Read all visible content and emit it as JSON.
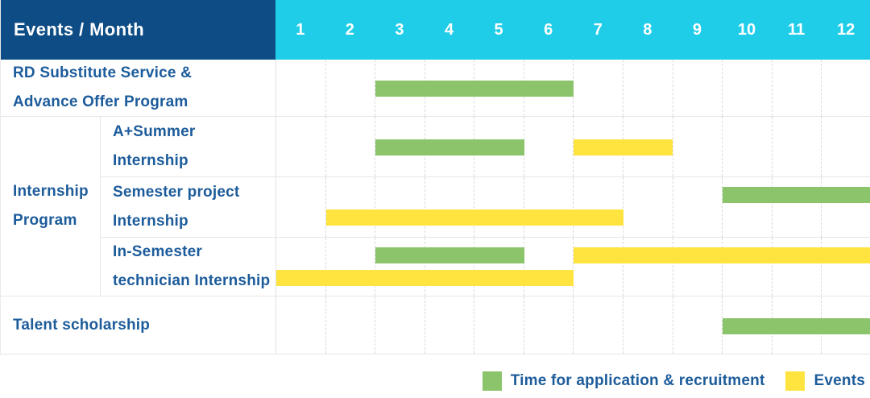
{
  "header": {
    "corner_label": "Events / Month",
    "months": [
      "1",
      "2",
      "3",
      "4",
      "5",
      "6",
      "7",
      "8",
      "9",
      "10",
      "11",
      "12"
    ]
  },
  "group_cell": {
    "label_lines": [
      "Internship",
      "Program"
    ]
  },
  "chart_data": {
    "type": "gantt",
    "x_unit": "month",
    "x_range": [
      1,
      12
    ],
    "grid": "dashed-vertical-month-lines",
    "legend_position": "bottom-right",
    "series": [
      {
        "name": "Time for application & recruitment",
        "key": "application",
        "color": "#8cc46c"
      },
      {
        "name": "Events",
        "key": "event",
        "color": "#ffe33e"
      }
    ],
    "rows": [
      {
        "group": null,
        "label": "RD Substitute Service & Advance Offer Program",
        "label_lines": [
          "RD Substitute Service &",
          "Advance Offer Program"
        ],
        "bars": [
          {
            "type": "application",
            "start_month": 3,
            "end_month": 6,
            "lane": "single"
          }
        ]
      },
      {
        "group": "Internship Program",
        "label": "A+Summer Internship",
        "label_lines": [
          "A+Summer",
          "Internship"
        ],
        "bars": [
          {
            "type": "application",
            "start_month": 3,
            "end_month": 5,
            "lane": "single"
          },
          {
            "type": "event",
            "start_month": 7,
            "end_month": 8,
            "lane": "single"
          }
        ]
      },
      {
        "group": "Internship Program",
        "label": "Semester project Internship",
        "label_lines": [
          "Semester project",
          "Internship"
        ],
        "bars": [
          {
            "type": "application",
            "start_month": 10,
            "end_month": 12,
            "lane": "top"
          },
          {
            "type": "event",
            "start_month": 2,
            "end_month": 7,
            "lane": "bottom"
          }
        ]
      },
      {
        "group": "Internship Program",
        "label": "In-Semester technician Internship",
        "label_lines": [
          "In-Semester",
          "technician Internship"
        ],
        "bars": [
          {
            "type": "application",
            "start_month": 3,
            "end_month": 5,
            "lane": "top"
          },
          {
            "type": "event",
            "start_month": 7,
            "end_month": 12,
            "lane": "top"
          },
          {
            "type": "event",
            "start_month": 1,
            "end_month": 6,
            "lane": "bottom"
          }
        ]
      },
      {
        "group": null,
        "label": "Talent scholarship",
        "label_lines": [
          "Talent scholarship"
        ],
        "bars": [
          {
            "type": "application",
            "start_month": 10,
            "end_month": 12,
            "lane": "single"
          }
        ]
      }
    ]
  },
  "legend": {
    "items": [
      {
        "type": "application",
        "label": "Time for application & recruitment"
      },
      {
        "type": "event",
        "label": "Events"
      }
    ]
  },
  "colors": {
    "header_navy": "#0d4c85",
    "header_cyan": "#1fcde9",
    "bar_green": "#8cc46c",
    "bar_yellow": "#ffe33e",
    "label_blue": "#1d5c9b",
    "grid_line": "#e6e6e6",
    "dash_line": "#d8d8d8"
  }
}
